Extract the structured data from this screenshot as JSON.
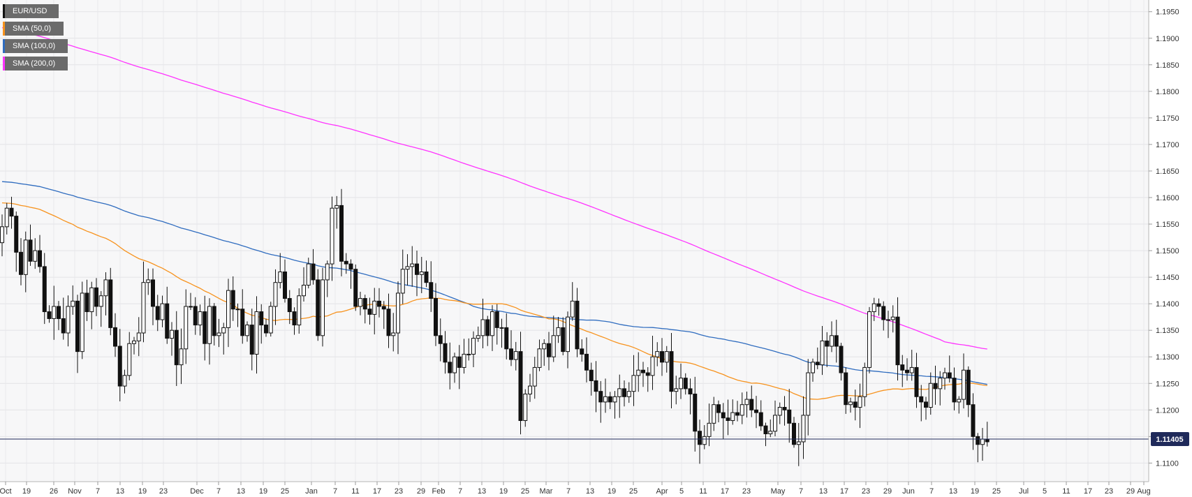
{
  "chart_data": {
    "type": "candlestick",
    "symbol": "EUR/USD",
    "last_price": "1.11405",
    "y_axis": {
      "range": [
        1.1065,
        1.1972
      ],
      "ticks": [
        "1.1100",
        "1.1150",
        "1.1200",
        "1.1250",
        "1.1300",
        "1.1350",
        "1.1400",
        "1.1450",
        "1.1500",
        "1.1550",
        "1.1600",
        "1.1650",
        "1.1700",
        "1.1750",
        "1.1800",
        "1.1850",
        "1.1900",
        "1.1950"
      ]
    },
    "x_axis": {
      "tick_labels": [
        "Oct",
        "19",
        "26",
        "Nov",
        "7",
        "13",
        "19",
        "23",
        "Dec",
        "7",
        "13",
        "19",
        "25",
        "Jan",
        "7",
        "11",
        "17",
        "23",
        "29",
        "Feb",
        "7",
        "13",
        "19",
        "25",
        "Mar",
        "7",
        "13",
        "19",
        "25",
        "Apr",
        "5",
        "11",
        "17",
        "23",
        "May",
        "7",
        "13",
        "17",
        "23",
        "29",
        "Jun",
        "7",
        "13",
        "19",
        "25",
        "Jul",
        "5",
        "11",
        "17",
        "23",
        "29",
        "Aug"
      ]
    },
    "grid": true,
    "legend_placement": "top-left",
    "legend": [
      {
        "label": "EUR/USD",
        "color": "#111111"
      },
      {
        "label": "SMA (50,0)",
        "color": "#f7931e"
      },
      {
        "label": "SMA (100,0)",
        "color": "#2f6cbf"
      },
      {
        "label": "SMA (200,0)",
        "color": "#ff33ff"
      }
    ],
    "candles_close": [
      1.1545,
      1.158,
      1.1565,
      1.1497,
      1.1455,
      1.152,
      1.148,
      1.15,
      1.147,
      1.1385,
      1.1372,
      1.1395,
      1.1372,
      1.1345,
      1.1395,
      1.1405,
      1.131,
      1.142,
      1.1385,
      1.143,
      1.1395,
      1.1415,
      1.1445,
      1.1355,
      1.132,
      1.1245,
      1.1265,
      1.1325,
      1.133,
      1.1345,
      1.144,
      1.1445,
      1.1395,
      1.137,
      1.14,
      1.1335,
      1.135,
      1.1285,
      1.1315,
      1.1395,
      1.1395,
      1.136,
      1.1385,
      1.1325,
      1.1395,
      1.134,
      1.1345,
      1.1355,
      1.1425,
      1.139,
      1.139,
      1.134,
      1.136,
      1.1305,
      1.1385,
      1.136,
      1.1345,
      1.1395,
      1.144,
      1.146,
      1.141,
      1.1385,
      1.136,
      1.1415,
      1.1435,
      1.1475,
      1.1445,
      1.134,
      1.1445,
      1.1475,
      1.158,
      1.1585,
      1.148,
      1.1475,
      1.1465,
      1.1395,
      1.141,
      1.139,
      1.138,
      1.1405,
      1.1395,
      1.139,
      1.134,
      1.1345,
      1.142,
      1.1465,
      1.147,
      1.1475,
      1.1455,
      1.146,
      1.144,
      1.141,
      1.134,
      1.1325,
      1.129,
      1.127,
      1.13,
      1.128,
      1.1305,
      1.1305,
      1.1335,
      1.134,
      1.137,
      1.134,
      1.1385,
      1.1355,
      1.1355,
      1.1315,
      1.1295,
      1.131,
      1.118,
      1.123,
      1.1245,
      1.128,
      1.1315,
      1.1325,
      1.13,
      1.134,
      1.1355,
      1.131,
      1.1375,
      1.1405,
      1.1315,
      1.1305,
      1.1275,
      1.1255,
      1.1235,
      1.1215,
      1.1225,
      1.1215,
      1.1225,
      1.124,
      1.1225,
      1.1235,
      1.1265,
      1.1275,
      1.127,
      1.1265,
      1.13,
      1.131,
      1.129,
      1.131,
      1.1235,
      1.124,
      1.126,
      1.124,
      1.123,
      1.116,
      1.1135,
      1.115,
      1.1175,
      1.121,
      1.1195,
      1.1185,
      1.118,
      1.1195,
      1.119,
      1.121,
      1.122,
      1.12,
      1.1195,
      1.117,
      1.1155,
      1.116,
      1.119,
      1.1205,
      1.12,
      1.1175,
      1.1135,
      1.114,
      1.119,
      1.127,
      1.129,
      1.1285,
      1.133,
      1.132,
      1.134,
      1.132,
      1.127,
      1.121,
      1.1215,
      1.1205,
      1.1225,
      1.128,
      1.1385,
      1.14,
      1.1395,
      1.137,
      1.137,
      1.1375,
      1.1285,
      1.1275,
      1.127,
      1.128,
      1.1225,
      1.1215,
      1.1205,
      1.125,
      1.124,
      1.126,
      1.127,
      1.126,
      1.1215,
      1.122,
      1.1275,
      1.121,
      1.115,
      1.1135,
      1.1145,
      1.114
    ]
  }
}
